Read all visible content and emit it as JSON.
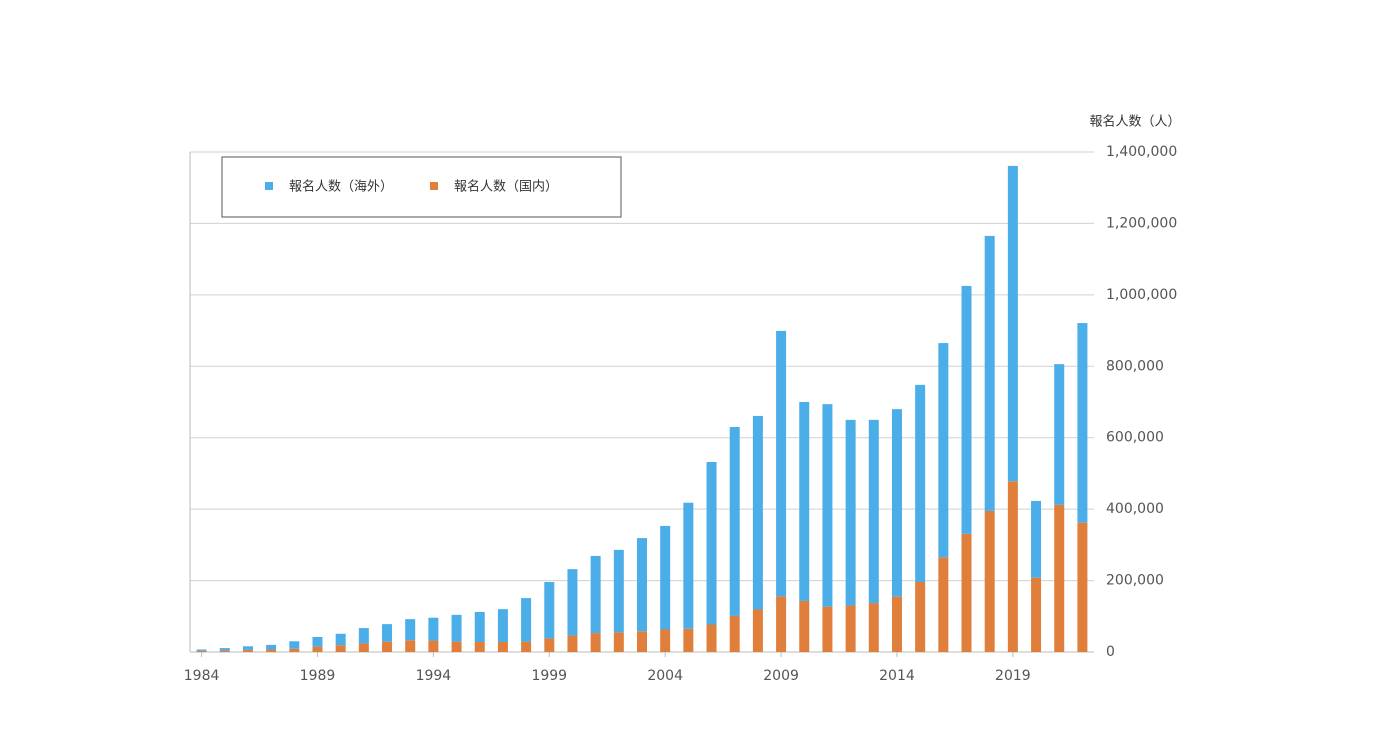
{
  "chart_data": {
    "type": "stacked_bar",
    "y_axis_title": "報名人数（人）",
    "categories": [
      "1984",
      null,
      null,
      null,
      null,
      "1989",
      null,
      null,
      null,
      null,
      "1994",
      null,
      null,
      null,
      null,
      "1999",
      null,
      null,
      null,
      null,
      "2004",
      null,
      null,
      null,
      null,
      "2009",
      null,
      null,
      null,
      null,
      "2014",
      null,
      null,
      null,
      null,
      "2019",
      null,
      null,
      null
    ],
    "series": [
      {
        "name": "報名人数（海外）",
        "color": "#4baee8",
        "values": [
          4000,
          7000,
          10000,
          13000,
          21000,
          27000,
          32000,
          43000,
          49000,
          59000,
          64000,
          75000,
          84000,
          92000,
          122000,
          158000,
          186000,
          216000,
          231000,
          261000,
          290000,
          353000,
          455000,
          529000,
          542000,
          743000,
          557000,
          567000,
          520000,
          513000,
          525000,
          552000,
          600000,
          694000,
          770000,
          883000,
          215000,
          394000,
          559000
        ]
      },
      {
        "name": "報名人数（国内）",
        "color": "#e07f3c",
        "values": [
          3000,
          4000,
          6000,
          7000,
          9000,
          15000,
          19000,
          24000,
          29000,
          33000,
          32000,
          29000,
          28000,
          28000,
          29000,
          38000,
          46000,
          53000,
          55000,
          58000,
          63000,
          65000,
          77000,
          101000,
          119000,
          156000,
          143000,
          127000,
          130000,
          137000,
          155000,
          196000,
          265000,
          331000,
          395000,
          478000,
          208000,
          412000,
          362000
        ]
      }
    ],
    "ylim": [
      0,
      1400000
    ],
    "yticks": [
      0,
      {
        "value": 200000,
        "label": "200,000"
      },
      {
        "value": 400000,
        "label": "400,000"
      },
      {
        "value": 600000,
        "label": "600,000"
      },
      {
        "value": 800000,
        "label": "800,000"
      },
      {
        "value": 1000000,
        "label": "1,000,000"
      },
      {
        "value": 1200000,
        "label": "1,200,000"
      },
      {
        "value": 1400000,
        "label": "1,400,000"
      }
    ],
    "grid": true
  }
}
